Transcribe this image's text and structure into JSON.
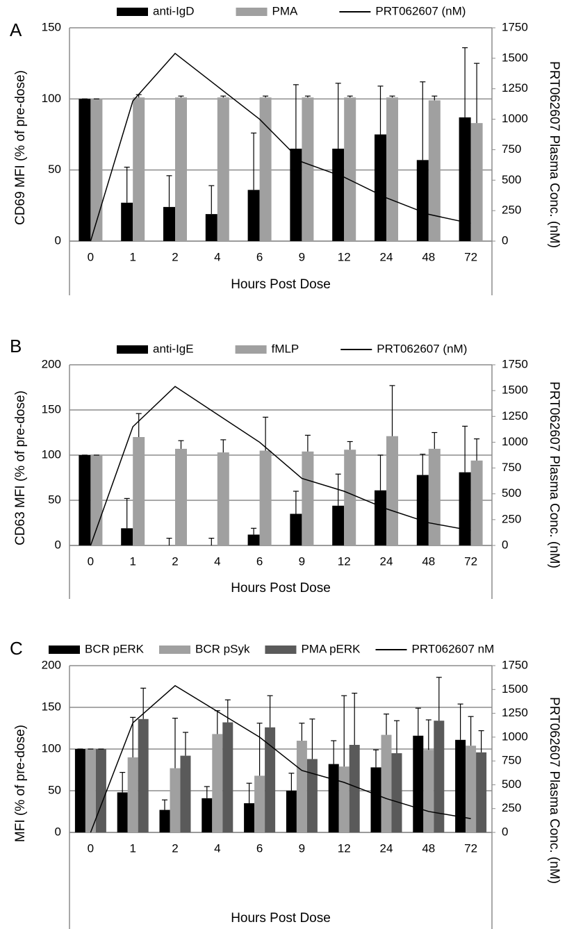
{
  "chart_data": [
    {
      "type": "bar",
      "panel_label": "A",
      "y_label": "CD69 MFI (% of pre-dose)",
      "y2_label": "PRT062607 Plasma Conc. (nM)",
      "x_label": "Hours Post Dose",
      "categories": [
        "0",
        "1",
        "2",
        "4",
        "6",
        "9",
        "12",
        "24",
        "48",
        "72"
      ],
      "ylim": [
        0,
        150
      ],
      "yticks": [
        0,
        50,
        100,
        150
      ],
      "y2lim": [
        0,
        1750
      ],
      "y2ticks": [
        0,
        250,
        500,
        750,
        1000,
        1250,
        1500,
        1750
      ],
      "grid": true,
      "series": [
        {
          "name": "anti-IgD",
          "type": "bar",
          "color": "#000000",
          "values": [
            100,
            27,
            24,
            19,
            36,
            65,
            65,
            75,
            57,
            87
          ],
          "errors": [
            0,
            25,
            22,
            20,
            40,
            45,
            46,
            34,
            55,
            49
          ]
        },
        {
          "name": "PMA",
          "type": "bar",
          "color": "#a0a0a0",
          "values": [
            100,
            101,
            101,
            101,
            101,
            101,
            101,
            101,
            99,
            83
          ],
          "errors": [
            0,
            2,
            1,
            1,
            1,
            1,
            1,
            1,
            3,
            42
          ]
        },
        {
          "name": "PRT062607 (nM)",
          "type": "line",
          "axis": "y2",
          "color": "#000000",
          "values": [
            0,
            1150,
            1540,
            1270,
            1000,
            650,
            525,
            355,
            220,
            145
          ]
        }
      ]
    },
    {
      "type": "bar",
      "panel_label": "B",
      "y_label": "CD63 MFI (% of pre-dose)",
      "y2_label": "PRT062607 Plasma Conc. (nM)",
      "x_label": "Hours Post Dose",
      "categories": [
        "0",
        "1",
        "2",
        "4",
        "6",
        "9",
        "12",
        "24",
        "48",
        "72"
      ],
      "ylim": [
        0,
        200
      ],
      "yticks": [
        0,
        50,
        100,
        150,
        200
      ],
      "y2lim": [
        0,
        1750
      ],
      "y2ticks": [
        0,
        250,
        500,
        750,
        1000,
        1250,
        1500,
        1750
      ],
      "grid": true,
      "series": [
        {
          "name": "anti-IgE",
          "type": "bar",
          "color": "#000000",
          "values": [
            100,
            19,
            0,
            0,
            12,
            35,
            44,
            61,
            78,
            81
          ],
          "errors": [
            0,
            33,
            8,
            8,
            7,
            25,
            35,
            39,
            23,
            51
          ]
        },
        {
          "name": "fMLP",
          "type": "bar",
          "color": "#a0a0a0",
          "values": [
            100,
            120,
            107,
            103,
            105,
            104,
            106,
            121,
            107,
            94
          ],
          "errors": [
            0,
            26,
            9,
            14,
            37,
            18,
            9,
            56,
            18,
            24
          ]
        },
        {
          "name": "PRT062607 (nM)",
          "type": "line",
          "axis": "y2",
          "color": "#000000",
          "values": [
            0,
            1150,
            1540,
            1270,
            1000,
            650,
            525,
            355,
            220,
            145
          ]
        }
      ]
    },
    {
      "type": "bar",
      "panel_label": "C",
      "y_label": "MFI (% of pre-dose)",
      "y2_label": "PRT062607 Plasma Conc. (nM)",
      "x_label": "Hours Post Dose",
      "categories": [
        "0",
        "1",
        "2",
        "4",
        "6",
        "9",
        "12",
        "24",
        "48",
        "72"
      ],
      "ylim": [
        0,
        200
      ],
      "yticks": [
        0,
        50,
        100,
        150,
        200
      ],
      "y2lim": [
        0,
        1750
      ],
      "y2ticks": [
        0,
        250,
        500,
        750,
        1000,
        1250,
        1500,
        1750
      ],
      "grid": true,
      "series": [
        {
          "name": "BCR pERK",
          "type": "bar",
          "color": "#000000",
          "values": [
            100,
            48,
            27,
            41,
            35,
            50,
            82,
            78,
            116,
            111
          ],
          "errors": [
            0,
            24,
            12,
            14,
            24,
            21,
            28,
            21,
            33,
            43
          ]
        },
        {
          "name": "BCR pSyk",
          "type": "bar",
          "color": "#a0a0a0",
          "values": [
            100,
            90,
            77,
            118,
            68,
            110,
            79,
            117,
            99,
            104
          ],
          "errors": [
            0,
            48,
            60,
            28,
            63,
            21,
            85,
            25,
            36,
            35
          ]
        },
        {
          "name": "PMA pERK",
          "type": "bar",
          "color": "#5a5a5a",
          "values": [
            100,
            136,
            92,
            132,
            126,
            88,
            105,
            95,
            134,
            96
          ],
          "errors": [
            0,
            37,
            28,
            27,
            38,
            48,
            62,
            39,
            52,
            26
          ]
        },
        {
          "name": "PRT062607 nM",
          "type": "line",
          "axis": "y2",
          "color": "#000000",
          "values": [
            0,
            1150,
            1540,
            1270,
            1000,
            650,
            525,
            355,
            220,
            145
          ]
        }
      ]
    }
  ]
}
